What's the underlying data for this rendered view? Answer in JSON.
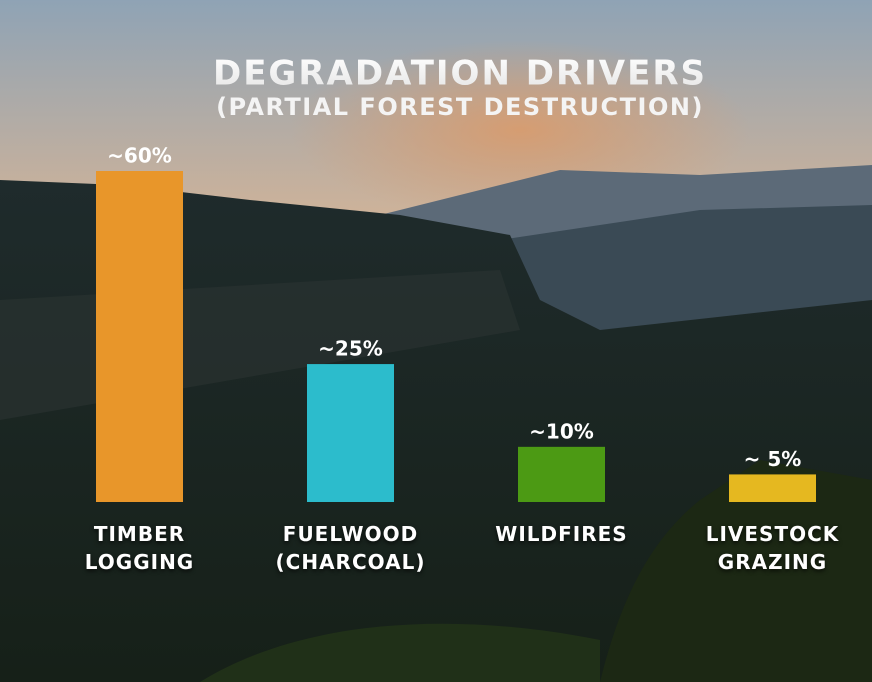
{
  "chart_data": {
    "type": "bar",
    "title": "DEGRADATION DRIVERS",
    "subtitle": "(PARTIAL FOREST DESTRUCTION)",
    "categories": [
      "TIMBER LOGGING",
      "FUELWOOD (CHARCOAL)",
      "WILDFIRES",
      "LIVESTOCK GRAZING"
    ],
    "values": [
      60,
      25,
      10,
      5
    ],
    "value_labels": [
      "~60%",
      "~25%",
      "~10%",
      "~ 5%"
    ],
    "colors": [
      "#e8962a",
      "#2cbccc",
      "#4c9a14",
      "#e5b820"
    ]
  }
}
